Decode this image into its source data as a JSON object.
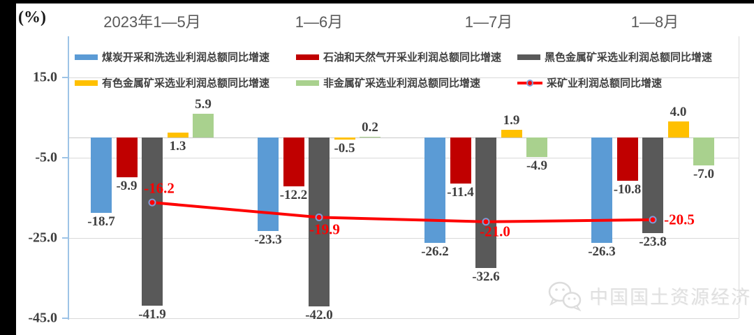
{
  "axis_unit": "(%)",
  "watermark": {
    "text": "中国国土资源经济",
    "icon": "wechat-icon"
  },
  "chart_data": {
    "type": "bar",
    "title": "",
    "categories": [
      "2023年1—5月",
      "1—6月",
      "1—7月",
      "1—8月"
    ],
    "series": [
      {
        "name": "煤炭开采和洗选业利润总额同比增速",
        "type": "bar",
        "color": "#5B9BD5",
        "values": [
          -18.7,
          -23.3,
          -26.2,
          -26.3
        ]
      },
      {
        "name": "石油和天然气开采业利润总额同比增速",
        "type": "bar",
        "color": "#C00000",
        "values": [
          -9.9,
          -12.2,
          -11.4,
          -10.8
        ]
      },
      {
        "name": "黑色金属矿采选业利润总额同比增速",
        "type": "bar",
        "color": "#595959",
        "values": [
          -41.9,
          -42.0,
          -32.6,
          -23.8
        ]
      },
      {
        "name": "有色金属矿采选业利润总额同比增速",
        "type": "bar",
        "color": "#FFC000",
        "values": [
          1.3,
          -0.5,
          1.9,
          4.0
        ]
      },
      {
        "name": "非金属矿采选业利润总额同比增速",
        "type": "bar",
        "color": "#A9D18E",
        "values": [
          5.9,
          0.2,
          -4.9,
          -7.0
        ]
      },
      {
        "name": "采矿业利润总额同比增速",
        "type": "line",
        "color": "#FE0000",
        "values": [
          -16.2,
          -19.9,
          -21.0,
          -20.5
        ]
      }
    ],
    "ylabel": "(%)",
    "y_tick_labels": [
      "15.0",
      "-5.0",
      "-25.0",
      "-45.0"
    ],
    "y_tick_values": [
      15,
      -5,
      -25,
      -45
    ],
    "ylim": [
      -48,
      20
    ],
    "grid": true,
    "legend_position": "top-inside",
    "marker_ring_color": "#7F9BD6"
  }
}
